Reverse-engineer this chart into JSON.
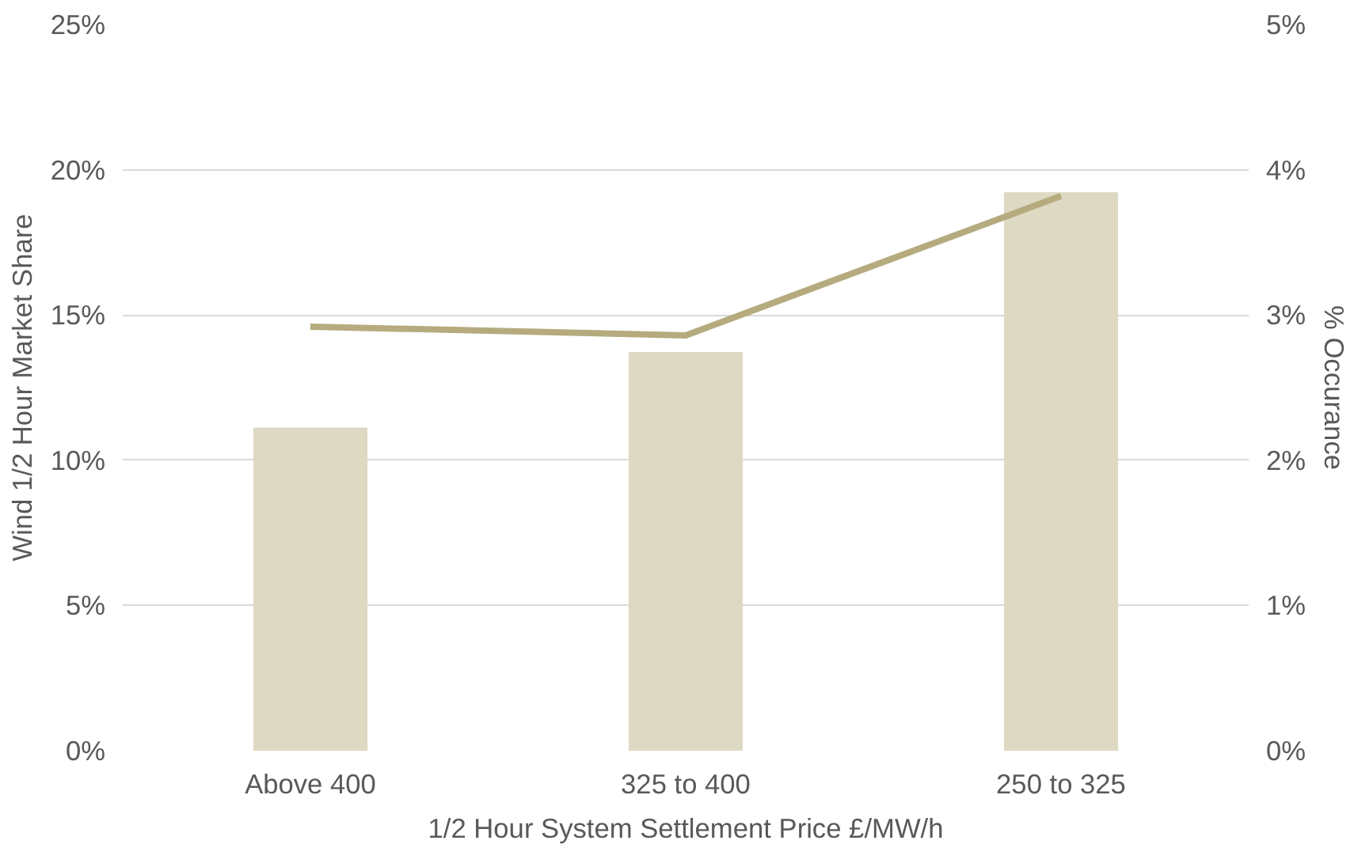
{
  "chart_data": {
    "type": "bar",
    "xlabel": "1/2 Hour System Settlement Price £/MW/h",
    "ylabel": "Wind 1/2 Hour Market Share",
    "y2label": "% Occurance",
    "categories": [
      "Above 400",
      "325 to 400",
      "250 to 325"
    ],
    "series": [
      {
        "color": "#ddd9c3",
        "values": [
          11.1,
          13.7,
          19.2
        ]
      },
      {
        "type": "line",
        "axis": "y2",
        "color": "#b5ab7e",
        "values": [
          2.92,
          2.86,
          3.82
        ]
      }
    ],
    "ylim": [
      0,
      25
    ],
    "yticks": [
      {
        "value": 0,
        "label": "0%"
      },
      {
        "value": 5,
        "label": "5%"
      },
      {
        "value": 10,
        "label": "10%"
      },
      {
        "value": 15,
        "label": "15%"
      },
      {
        "value": 20,
        "label": "20%"
      },
      {
        "value": 25,
        "label": "25%"
      }
    ],
    "y2lim": [
      0,
      5
    ],
    "y2ticks": [
      {
        "value": 0,
        "label": "0%"
      },
      {
        "value": 1,
        "label": "1%"
      },
      {
        "value": 2,
        "label": "2%"
      },
      {
        "value": 3,
        "label": "3%"
      },
      {
        "value": 4,
        "label": "4%"
      },
      {
        "value": 5,
        "label": "5%"
      }
    ],
    "grid": "y",
    "marker": "none",
    "line_style": "solid"
  }
}
